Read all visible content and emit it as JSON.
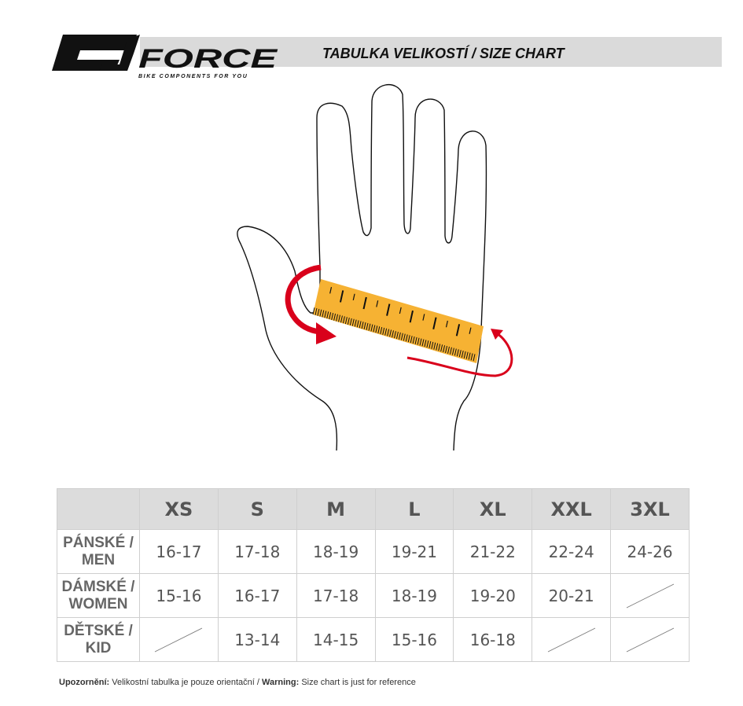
{
  "header": {
    "title": "TABULKA VELIKOSTÍ / SIZE CHART",
    "logo_text": "FORCE",
    "logo_tagline": "BIKE COMPONENTS FOR YOU"
  },
  "colors": {
    "ruler": "#f6b233",
    "arrow": "#d9001b",
    "header_bg": "#dcdcdc"
  },
  "table": {
    "sizes": [
      "XS",
      "S",
      "M",
      "L",
      "XL",
      "XXL",
      "3XL"
    ],
    "rows": [
      {
        "label1": "PÁNSKÉ /",
        "label2": "MEN",
        "values": [
          "16-17",
          "17-18",
          "18-19",
          "19-21",
          "21-22",
          "22-24",
          "24-26"
        ]
      },
      {
        "label1": "DÁMSKÉ /",
        "label2": "WOMEN",
        "values": [
          "15-16",
          "16-17",
          "17-18",
          "18-19",
          "19-20",
          "20-21",
          null
        ]
      },
      {
        "label1": "DĚTSKÉ /",
        "label2": "KID",
        "values": [
          null,
          "13-14",
          "14-15",
          "15-16",
          "16-18",
          null,
          null
        ]
      }
    ]
  },
  "footer": {
    "warn_cz_label": "Upozornění:",
    "warn_cz_text": " Velikostní tabulka je pouze orientační / ",
    "warn_en_label": "Warning:",
    "warn_en_text": " Size chart is just for reference"
  }
}
